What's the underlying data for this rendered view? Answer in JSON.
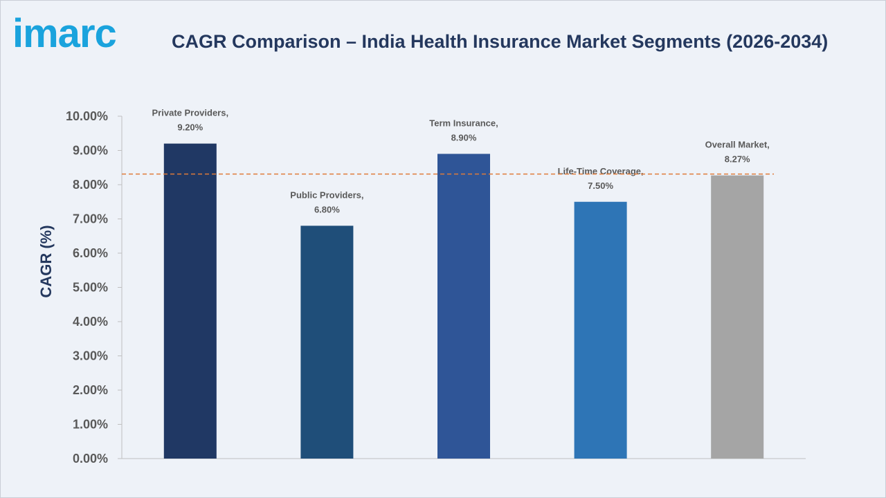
{
  "header": {
    "logo_text": "imarc",
    "title": "CAGR Comparison – India Health Insurance Market Segments (2026-2034)"
  },
  "chart_data": {
    "type": "bar",
    "title": "CAGR Comparison – India Health Insurance Market Segments (2026-2034)",
    "ylabel": "CAGR (%)",
    "xlabel": "",
    "ylim": [
      0,
      10
    ],
    "yticks": [
      "0.00%",
      "1.00%",
      "2.00%",
      "3.00%",
      "4.00%",
      "5.00%",
      "6.00%",
      "7.00%",
      "8.00%",
      "9.00%",
      "10.00%"
    ],
    "categories": [
      "Private Providers",
      "Public Providers",
      "Term Insurance",
      "Life-Time Coverage",
      "Overall Market"
    ],
    "values": [
      9.2,
      6.8,
      8.9,
      7.5,
      8.27
    ],
    "value_labels": [
      "9.20%",
      "6.80%",
      "8.90%",
      "7.50%",
      "8.27%"
    ],
    "colors": [
      "#203864",
      "#1f4e79",
      "#2f5597",
      "#2e75b6",
      "#a5a5a5"
    ],
    "reference_line": {
      "value": 8.27,
      "style": "dashed",
      "color": "#e07b39"
    },
    "grid": false,
    "legend": "none"
  }
}
